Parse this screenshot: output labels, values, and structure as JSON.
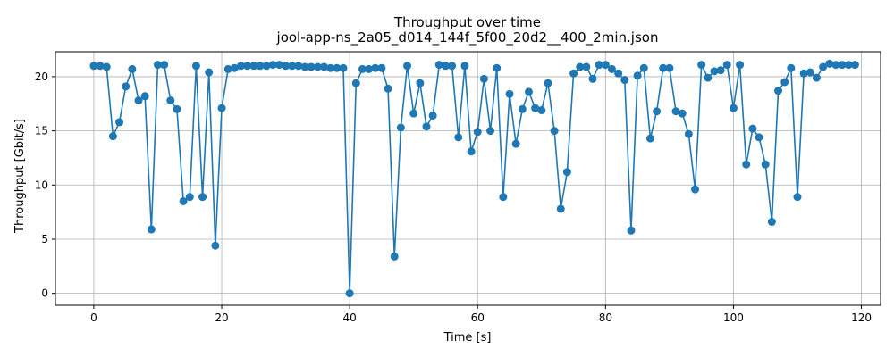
{
  "chart_data": {
    "type": "line",
    "title": "Throughput over time",
    "subtitle": "jool-app-ns_2a05_d014_144f_5f00_20d2__400_2min.json",
    "xlabel": "Time [s]",
    "ylabel": "Throughput [Gbit/s]",
    "xlim": [
      -6,
      123
    ],
    "ylim": [
      -1.1,
      22.3
    ],
    "xticks": [
      0,
      20,
      40,
      60,
      80,
      100,
      120
    ],
    "yticks": [
      0,
      5,
      10,
      15,
      20
    ],
    "grid": true,
    "color": "#1f77b4",
    "series": [
      {
        "x": [
          0,
          1,
          2,
          3,
          4,
          5,
          6,
          7,
          8,
          9,
          10,
          11,
          12,
          13,
          14,
          15,
          16,
          17,
          18,
          19,
          20,
          21,
          22,
          23,
          24,
          25,
          26,
          27,
          28,
          29,
          30,
          31,
          32,
          33,
          34,
          35,
          36,
          37,
          38,
          39,
          40,
          41,
          42,
          43,
          44,
          45,
          46,
          47,
          48,
          49,
          50,
          51,
          52,
          53,
          54,
          55,
          56,
          57,
          58,
          59,
          60,
          61,
          62,
          63,
          64,
          65,
          66,
          67,
          68,
          69,
          70,
          71,
          72,
          73,
          74,
          75,
          76,
          77,
          78,
          79,
          80,
          81,
          82,
          83,
          84,
          85,
          86,
          87,
          88,
          89,
          90,
          91,
          92,
          93,
          94,
          95,
          96,
          97,
          98,
          99,
          100,
          101,
          102,
          103,
          104,
          105,
          106,
          107,
          108,
          109,
          110,
          111,
          112,
          113,
          114,
          115,
          116,
          117,
          118,
          119
        ],
        "values": [
          21.0,
          21.0,
          20.9,
          14.5,
          15.8,
          19.1,
          20.7,
          17.8,
          18.2,
          5.9,
          21.1,
          21.1,
          17.8,
          17.0,
          8.5,
          8.9,
          21.0,
          8.9,
          20.4,
          4.4,
          17.1,
          20.7,
          20.8,
          21.0,
          21.0,
          21.0,
          21.0,
          21.0,
          21.1,
          21.1,
          21.0,
          21.0,
          21.0,
          20.9,
          20.9,
          20.9,
          20.9,
          20.8,
          20.8,
          20.8,
          0.0,
          19.4,
          20.7,
          20.7,
          20.8,
          20.8,
          18.9,
          3.4,
          15.3,
          21.0,
          16.6,
          19.4,
          15.4,
          16.4,
          21.1,
          21.0,
          21.0,
          14.4,
          21.0,
          13.1,
          14.9,
          19.8,
          15.0,
          20.8,
          8.9,
          18.4,
          13.8,
          17.0,
          18.6,
          17.1,
          16.9,
          19.4,
          15.0,
          7.8,
          11.2,
          20.3,
          20.9,
          20.9,
          19.8,
          21.1,
          21.1,
          20.7,
          20.3,
          19.7,
          5.8,
          20.1,
          20.8,
          14.3,
          16.8,
          20.8,
          20.8,
          16.8,
          16.6,
          14.7,
          9.6,
          21.1,
          19.9,
          20.5,
          20.6,
          21.1,
          17.1,
          21.1,
          11.9,
          15.2,
          14.4,
          11.9,
          6.6,
          18.7,
          19.5,
          20.8,
          8.9,
          20.3,
          20.4,
          19.9,
          20.9,
          21.2,
          21.1,
          21.1,
          21.1,
          21.1
        ]
      }
    ]
  }
}
